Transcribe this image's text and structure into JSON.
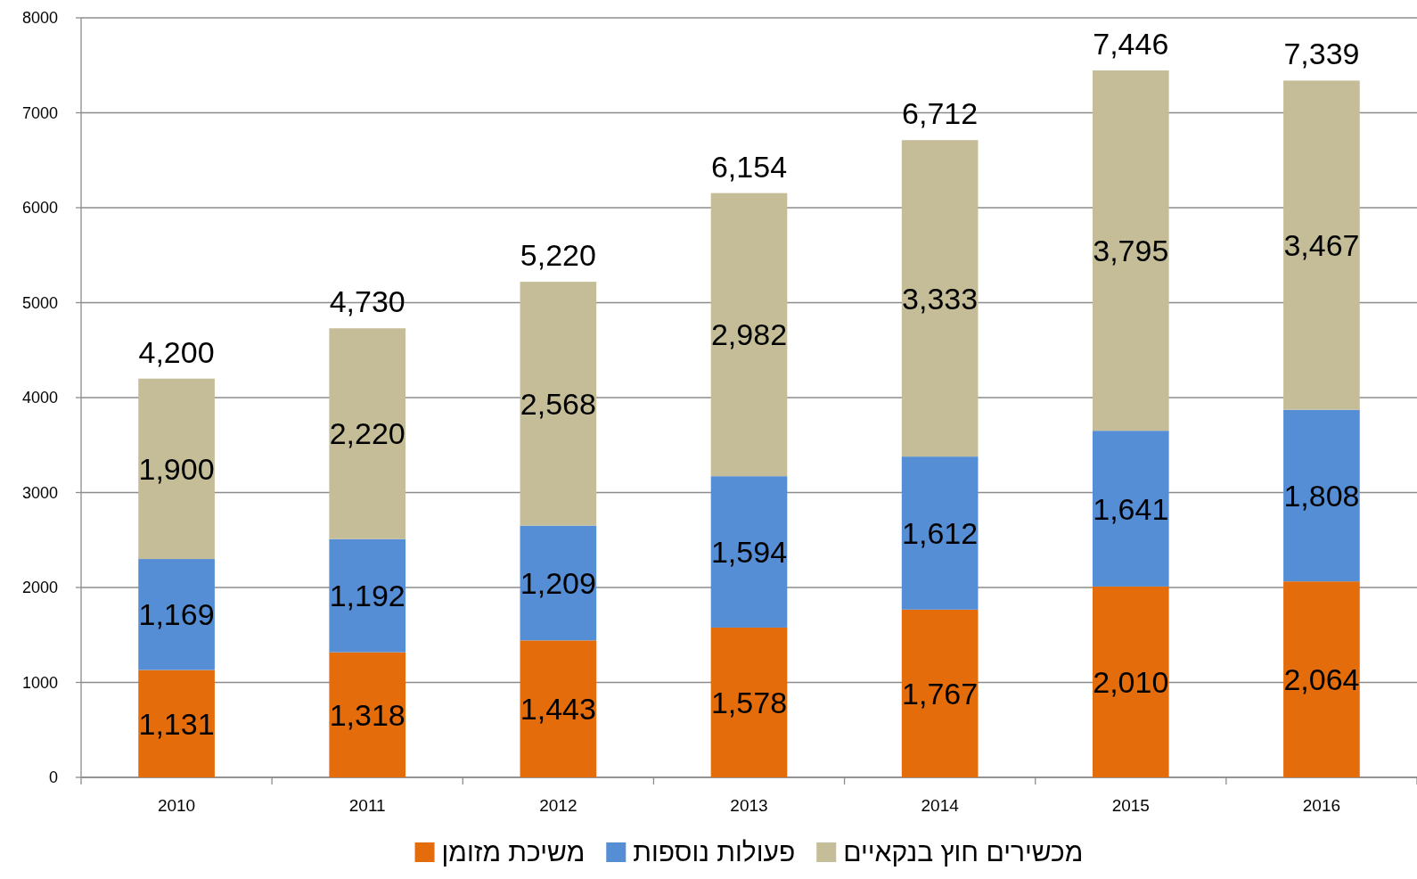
{
  "chart_data": {
    "type": "bar",
    "stacked": true,
    "categories": [
      "2010",
      "2011",
      "2012",
      "2013",
      "2014",
      "2015",
      "2016"
    ],
    "series": [
      {
        "name": "משיכת מזומן",
        "color": "#e46c0a",
        "values": [
          1131,
          1318,
          1443,
          1578,
          1767,
          2010,
          2064
        ],
        "value_labels": [
          "1,131",
          "1,318",
          "1,443",
          "1,578",
          "1,767",
          "2,010",
          "2,064"
        ]
      },
      {
        "name": "פעולות נוספות",
        "color": "#558ed5",
        "values": [
          1169,
          1192,
          1209,
          1594,
          1612,
          1641,
          1808
        ],
        "value_labels": [
          "1,169",
          "1,192",
          "1,209",
          "1,594",
          "1,612",
          "1,641",
          "1,808"
        ]
      },
      {
        "name": "מכשירים חוץ בנקאיים",
        "color": "#c4bd97",
        "values": [
          1900,
          2220,
          2568,
          2982,
          3333,
          3795,
          3467
        ],
        "value_labels": [
          "1,900",
          "2,220",
          "2,568",
          "2,982",
          "3,333",
          "3,795",
          "3,467"
        ]
      }
    ],
    "totals": [
      "4,200",
      "4,730",
      "5,220",
      "6,154",
      "6,712",
      "7,446",
      "7,339"
    ],
    "ylim": [
      0,
      8000
    ],
    "yticks": [
      0,
      1000,
      2000,
      3000,
      4000,
      5000,
      6000,
      7000,
      8000
    ],
    "grid": "y",
    "legend": "bottom"
  }
}
